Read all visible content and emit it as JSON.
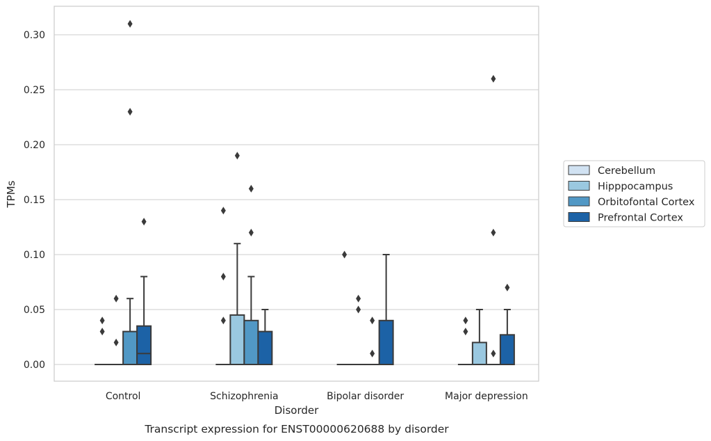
{
  "chart_data": {
    "type": "box",
    "xlabel": "Disorder",
    "ylabel": "TPMs",
    "caption": "Transcript expression for ENST00000620688 by disorder",
    "categories": [
      "Control",
      "Schizophrenia",
      "Bipolar disorder",
      "Major depression"
    ],
    "ylim": [
      -0.015,
      0.325
    ],
    "yticks": [
      "0.00",
      "0.05",
      "0.10",
      "0.15",
      "0.20",
      "0.25",
      "0.30"
    ],
    "grid": "horizontal",
    "legend_position": "right",
    "series": [
      {
        "name": "Cerebellum",
        "color": "#d1e2f2",
        "boxes": [
          {
            "category": "Control",
            "q1": 0,
            "median": 0,
            "q3": 0,
            "whisker_low": 0,
            "whisker_high": 0,
            "outliers": [
              0.03,
              0.04
            ]
          },
          {
            "category": "Schizophrenia",
            "q1": 0,
            "median": 0,
            "q3": 0,
            "whisker_low": 0,
            "whisker_high": 0,
            "outliers": [
              0.04,
              0.08,
              0.14
            ]
          },
          {
            "category": "Bipolar disorder",
            "q1": 0,
            "median": 0,
            "q3": 0,
            "whisker_low": 0,
            "whisker_high": 0,
            "outliers": [
              0.1
            ]
          },
          {
            "category": "Major depression",
            "q1": 0,
            "median": 0,
            "q3": 0,
            "whisker_low": 0,
            "whisker_high": 0,
            "outliers": [
              0.03,
              0.04
            ]
          }
        ]
      },
      {
        "name": "Hipppocampus",
        "color": "#9ac8e0",
        "boxes": [
          {
            "category": "Control",
            "q1": 0,
            "median": 0,
            "q3": 0,
            "whisker_low": 0,
            "whisker_high": 0,
            "outliers": [
              0.02,
              0.06
            ]
          },
          {
            "category": "Schizophrenia",
            "q1": 0,
            "median": 0,
            "q3": 0.045,
            "whisker_low": 0,
            "whisker_high": 0.11,
            "outliers": [
              0.19
            ]
          },
          {
            "category": "Bipolar disorder",
            "q1": 0,
            "median": 0,
            "q3": 0,
            "whisker_low": 0,
            "whisker_high": 0,
            "outliers": [
              0.05,
              0.06
            ]
          },
          {
            "category": "Major depression",
            "q1": 0,
            "median": 0,
            "q3": 0.02,
            "whisker_low": 0,
            "whisker_high": 0.05,
            "outliers": []
          }
        ]
      },
      {
        "name": "Orbitofontal Cortex",
        "color": "#5198c5",
        "boxes": [
          {
            "category": "Control",
            "q1": 0,
            "median": 0,
            "q3": 0.03,
            "whisker_low": 0,
            "whisker_high": 0.06,
            "outliers": [
              0.23,
              0.31
            ]
          },
          {
            "category": "Schizophrenia",
            "q1": 0,
            "median": 0,
            "q3": 0.04,
            "whisker_low": 0,
            "whisker_high": 0.08,
            "outliers": [
              0.12,
              0.16
            ]
          },
          {
            "category": "Bipolar disorder",
            "q1": 0,
            "median": 0,
            "q3": 0,
            "whisker_low": 0,
            "whisker_high": 0,
            "outliers": [
              0.01,
              0.04
            ]
          },
          {
            "category": "Major depression",
            "q1": 0,
            "median": 0,
            "q3": 0,
            "whisker_low": 0,
            "whisker_high": 0,
            "outliers": [
              0.01,
              0.12,
              0.26
            ]
          }
        ]
      },
      {
        "name": "Prefrontal Cortex",
        "color": "#1c62a6",
        "boxes": [
          {
            "category": "Control",
            "q1": 0,
            "median": 0.01,
            "q3": 0.035,
            "whisker_low": 0,
            "whisker_high": 0.08,
            "outliers": [
              0.13
            ]
          },
          {
            "category": "Schizophrenia",
            "q1": 0,
            "median": 0,
            "q3": 0.03,
            "whisker_low": 0,
            "whisker_high": 0.05,
            "outliers": []
          },
          {
            "category": "Bipolar disorder",
            "q1": 0,
            "median": 0,
            "q3": 0.04,
            "whisker_low": 0,
            "whisker_high": 0.1,
            "outliers": []
          },
          {
            "category": "Major depression",
            "q1": 0,
            "median": 0,
            "q3": 0.027,
            "whisker_low": 0,
            "whisker_high": 0.05,
            "outliers": [
              0.07
            ]
          }
        ]
      }
    ]
  }
}
